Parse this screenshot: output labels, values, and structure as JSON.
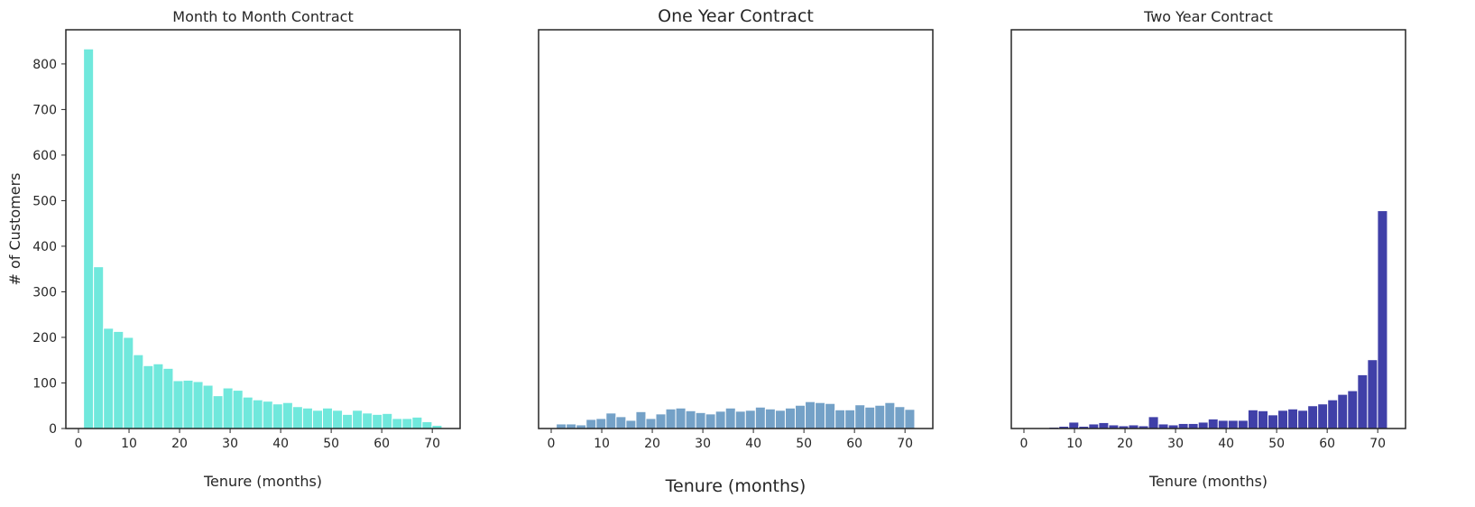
{
  "chart_data": [
    {
      "type": "bar",
      "title": "Month to Month Contract",
      "xlabel": "Tenure (months)",
      "ylabel": "# of Customers",
      "xlim": [
        -2.5,
        75.5
      ],
      "ylim": [
        0,
        875
      ],
      "xticks": [
        0,
        10,
        20,
        30,
        40,
        50,
        60,
        70
      ],
      "yticks": [
        0,
        100,
        200,
        300,
        400,
        500,
        600,
        700,
        800
      ],
      "bin_width": 1.97,
      "color": "#40e0d0",
      "x": [
        1,
        2.97,
        4.94,
        6.91,
        8.88,
        10.85,
        12.82,
        14.79,
        16.76,
        18.73,
        20.7,
        22.67,
        24.64,
        26.61,
        28.58,
        30.55,
        32.52,
        34.49,
        36.46,
        38.43,
        40.4,
        42.37,
        44.34,
        46.31,
        48.28,
        50.25,
        52.22,
        54.19,
        56.16,
        58.13,
        60.1,
        62.07,
        64.04,
        66.01,
        67.98,
        69.95
      ],
      "values": [
        833,
        355,
        220,
        213,
        200,
        162,
        138,
        142,
        132,
        105,
        106,
        103,
        95,
        72,
        89,
        84,
        69,
        63,
        60,
        54,
        57,
        48,
        45,
        40,
        45,
        40,
        31,
        40,
        34,
        31,
        33,
        22,
        22,
        25,
        15,
        7
      ]
    },
    {
      "type": "bar",
      "title": "One Year Contract",
      "xlabel": "Tenure (months)",
      "ylabel": "",
      "xlim": [
        -2.5,
        75.5
      ],
      "ylim": [
        0,
        875
      ],
      "xticks": [
        0,
        10,
        20,
        30,
        40,
        50,
        60,
        70
      ],
      "yticks": [],
      "bin_width": 1.97,
      "color": "#4682b4",
      "x": [
        1,
        2.97,
        4.94,
        6.91,
        8.88,
        10.85,
        12.82,
        14.79,
        16.76,
        18.73,
        20.7,
        22.67,
        24.64,
        26.61,
        28.58,
        30.55,
        32.52,
        34.49,
        36.46,
        38.43,
        40.4,
        42.37,
        44.34,
        46.31,
        48.28,
        50.25,
        52.22,
        54.19,
        56.16,
        58.13,
        60.1,
        62.07,
        64.04,
        66.01,
        67.98,
        69.95
      ],
      "values": [
        10,
        10,
        8,
        20,
        22,
        34,
        26,
        18,
        37,
        22,
        32,
        43,
        45,
        39,
        35,
        32,
        38,
        45,
        38,
        40,
        47,
        43,
        40,
        45,
        51,
        59,
        57,
        55,
        41,
        41,
        52,
        47,
        51,
        57,
        48,
        42
      ]
    },
    {
      "type": "bar",
      "title": "Two Year Contract",
      "xlabel": "Tenure (months)",
      "ylabel": "",
      "xlim": [
        -2.5,
        75.5
      ],
      "ylim": [
        0,
        875
      ],
      "xticks": [
        0,
        10,
        20,
        30,
        40,
        50,
        60,
        70
      ],
      "yticks": [],
      "bin_width": 1.97,
      "color": "#00008b",
      "x": [
        1,
        2.97,
        4.94,
        6.91,
        8.88,
        10.85,
        12.82,
        14.79,
        16.76,
        18.73,
        20.7,
        22.67,
        24.64,
        26.61,
        28.58,
        30.55,
        32.52,
        34.49,
        36.46,
        38.43,
        40.4,
        42.37,
        44.34,
        46.31,
        48.28,
        50.25,
        52.22,
        54.19,
        56.16,
        58.13,
        60.1,
        62.07,
        64.04,
        66.01,
        67.98,
        69.95
      ],
      "values": [
        0,
        0,
        3,
        5,
        14,
        5,
        10,
        13,
        8,
        6,
        8,
        6,
        26,
        10,
        8,
        11,
        11,
        14,
        21,
        18,
        18,
        18,
        41,
        39,
        30,
        40,
        43,
        40,
        50,
        54,
        63,
        75,
        83,
        118,
        151,
        478
      ]
    }
  ]
}
